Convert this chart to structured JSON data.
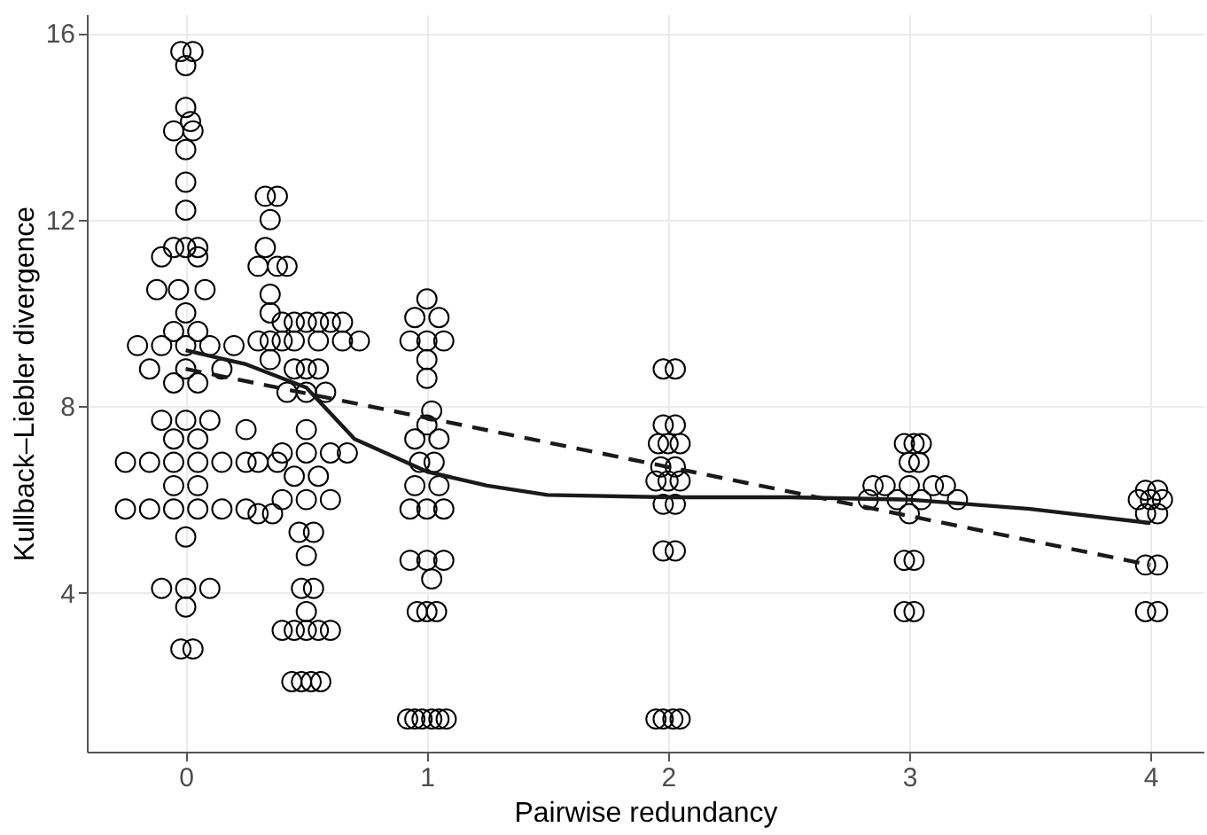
{
  "chart_data": {
    "type": "scatter",
    "xlabel": "Pairwise redundancy",
    "ylabel": "Kullback–Liebler divergence",
    "xlim": [
      -0.41,
      4.22
    ],
    "ylim": [
      0.6,
      16.4
    ],
    "xticks": [
      0,
      1,
      2,
      3,
      4
    ],
    "yticks": [
      4,
      8,
      12,
      16
    ],
    "grid": true,
    "series": [
      {
        "marker": "circle",
        "color": "#000000",
        "x": [
          -0.02,
          0.03,
          0,
          0,
          -0.05,
          0.03,
          0.02,
          0,
          0,
          0,
          -0.05,
          0,
          0.05,
          -0.1,
          0.05,
          -0.12,
          -0.03,
          0.08,
          0,
          -0.05,
          0.05,
          -0.2,
          -0.1,
          0,
          0.1,
          0.2,
          -0.15,
          0,
          0.15,
          -0.05,
          0.05,
          -0.1,
          0,
          0.1,
          -0.05,
          0.05,
          -0.25,
          -0.15,
          -0.05,
          0.05,
          0.15,
          0.25,
          -0.05,
          0.05,
          -0.25,
          -0.15,
          -0.05,
          0.05,
          0.15,
          0.25,
          0,
          -0.1,
          0,
          0.1,
          0,
          -0.02,
          0.03,
          0.33,
          0.38,
          0.35,
          0.33,
          0.3,
          0.38,
          0.42,
          0.35,
          0.35,
          0.3,
          0.4,
          0.35,
          0.25,
          0.3,
          0.38,
          0.3,
          0.36,
          0.4,
          0.45,
          0.5,
          0.55,
          0.6,
          0.65,
          0.35,
          0.45,
          0.55,
          0.65,
          0.72,
          0.45,
          0.5,
          0.55,
          0.42,
          0.5,
          0.58,
          0.5,
          0.4,
          0.5,
          0.6,
          0.67,
          0.45,
          0.55,
          0.4,
          0.5,
          0.6,
          0.47,
          0.53,
          0.5,
          0.48,
          0.53,
          0.5,
          0.4,
          0.45,
          0.5,
          0.55,
          0.6,
          0.44,
          0.48,
          0.52,
          0.56,
          1,
          0.95,
          1.05,
          0.93,
          1,
          1.07,
          1,
          1,
          1.02,
          1,
          0.95,
          1.05,
          0.97,
          1.03,
          0.95,
          1.05,
          0.93,
          1,
          1.07,
          0.93,
          1,
          1.07,
          1.02,
          0.96,
          1,
          1.04,
          0.92,
          0.95,
          0.98,
          1.02,
          1.05,
          1.08,
          1.98,
          2.03,
          1.98,
          2.03,
          1.96,
          2,
          2.05,
          1.97,
          2.03,
          1.95,
          2,
          2.05,
          1.98,
          2.03,
          1.98,
          2.03,
          1.95,
          1.98,
          2.02,
          2.05,
          2.98,
          3.02,
          3.05,
          3,
          3.04,
          2.85,
          2.9,
          3,
          3.1,
          3.15,
          2.83,
          2.95,
          3.05,
          3.2,
          3,
          2.98,
          3.02,
          2.98,
          3.02,
          3.98,
          4.03,
          3.95,
          4,
          4.05,
          3.98,
          4.03,
          3.98,
          4.03,
          3.98,
          4.03
        ],
        "values": [
          15.6,
          15.6,
          15.3,
          14.4,
          13.9,
          13.9,
          14.1,
          13.5,
          12.8,
          12.2,
          11.4,
          11.4,
          11.4,
          11.2,
          11.2,
          10.5,
          10.5,
          10.5,
          10,
          9.6,
          9.6,
          9.3,
          9.3,
          9.3,
          9.3,
          9.3,
          8.8,
          8.8,
          8.8,
          8.5,
          8.5,
          7.7,
          7.7,
          7.7,
          7.3,
          7.3,
          6.8,
          6.8,
          6.8,
          6.8,
          6.8,
          6.8,
          6.3,
          6.3,
          5.8,
          5.8,
          5.8,
          5.8,
          5.8,
          5.8,
          5.2,
          4.1,
          4.1,
          4.1,
          3.7,
          2.8,
          2.8,
          12.5,
          12.5,
          12,
          11.4,
          11,
          11,
          11,
          10.4,
          10,
          9.4,
          9.4,
          9,
          7.5,
          6.8,
          6.8,
          5.7,
          5.7,
          9.8,
          9.8,
          9.8,
          9.8,
          9.8,
          9.8,
          9.4,
          9.4,
          9.4,
          9.4,
          9.4,
          8.8,
          8.8,
          8.8,
          8.3,
          8.3,
          8.3,
          7.5,
          7,
          7,
          7,
          7,
          6.5,
          6.5,
          6,
          6,
          6,
          5.3,
          5.3,
          4.8,
          4.1,
          4.1,
          3.6,
          3.2,
          3.2,
          3.2,
          3.2,
          3.2,
          2.1,
          2.1,
          2.1,
          2.1,
          10.3,
          9.9,
          9.9,
          9.4,
          9.4,
          9.4,
          9,
          8.6,
          7.9,
          7.6,
          7.3,
          7.3,
          6.8,
          6.8,
          6.3,
          6.3,
          5.8,
          5.8,
          5.8,
          4.7,
          4.7,
          4.7,
          4.3,
          3.6,
          3.6,
          3.6,
          1.3,
          1.3,
          1.3,
          1.3,
          1.3,
          1.3,
          8.8,
          8.8,
          7.6,
          7.6,
          7.2,
          7.2,
          7.2,
          6.7,
          6.7,
          6.4,
          6.4,
          6.4,
          5.9,
          5.9,
          4.9,
          4.9,
          1.3,
          1.3,
          1.3,
          1.3,
          7.2,
          7.2,
          7.2,
          6.8,
          6.8,
          6.3,
          6.3,
          6.3,
          6.3,
          6.3,
          6,
          6,
          6,
          6,
          5.7,
          4.7,
          4.7,
          3.6,
          3.6,
          6.2,
          6.2,
          6,
          6,
          6,
          5.7,
          5.7,
          4.6,
          4.6,
          3.6,
          3.6
        ]
      },
      {
        "type": "line",
        "line_style": "solid",
        "color": "#1a1a1a",
        "x": [
          0,
          0.25,
          0.5,
          0.7,
          1,
          1.25,
          1.5,
          2,
          2.5,
          3,
          3.5,
          4
        ],
        "values": [
          9.2,
          8.9,
          8.4,
          7.3,
          6.6,
          6.3,
          6.1,
          6.05,
          6.05,
          6.0,
          5.8,
          5.5
        ]
      },
      {
        "type": "line",
        "line_style": "dashed",
        "color": "#1a1a1a",
        "x": [
          0,
          1,
          2,
          3,
          4
        ],
        "values": [
          8.8,
          7.75,
          6.7,
          5.65,
          4.6
        ]
      }
    ]
  }
}
